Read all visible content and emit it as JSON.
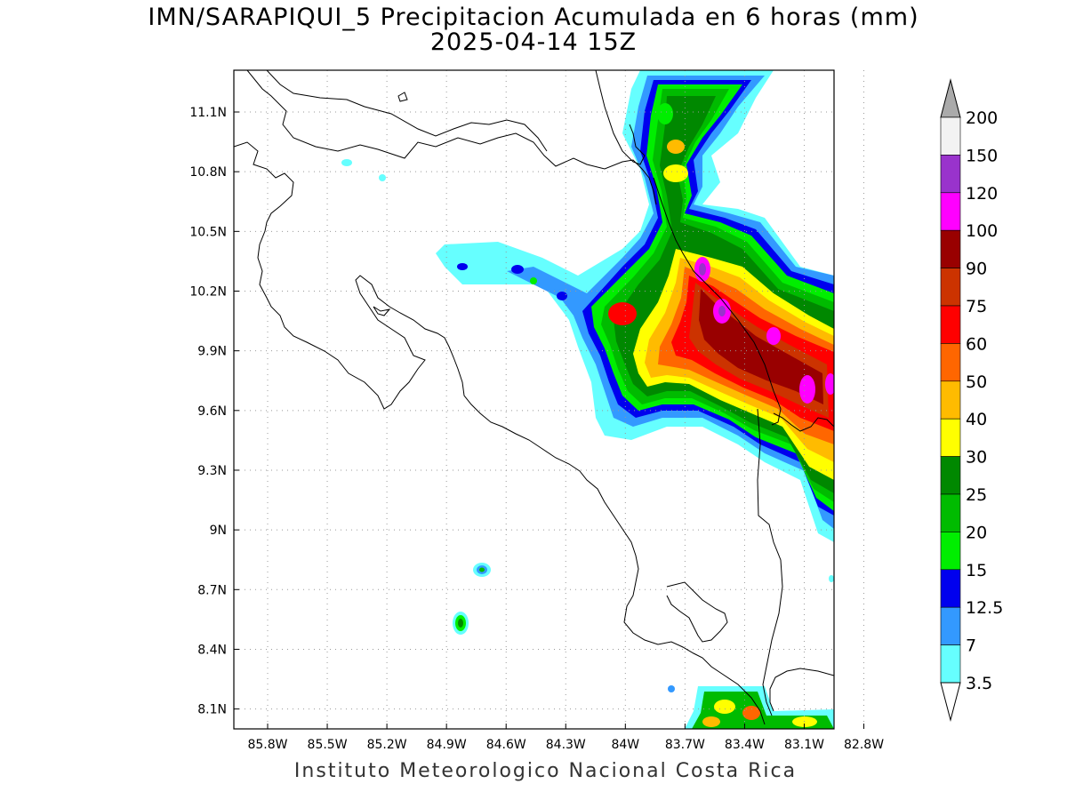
{
  "header": {
    "title": "IMN/SARAPIQUI_5 Precipitacion Acumulada en 6 horas (mm)",
    "subtitle": "2025-04-14 15Z"
  },
  "footer": {
    "credit": "Instituto Meteorologico Nacional Costa Rica"
  },
  "axes": {
    "lon_ticks": [
      "85.8W",
      "85.5W",
      "85.2W",
      "84.9W",
      "84.6W",
      "84.3W",
      "84W",
      "83.7W",
      "83.4W",
      "83.1W",
      "82.8W"
    ],
    "lat_ticks": [
      "11.1N",
      "10.8N",
      "10.5N",
      "10.2N",
      "9.9N",
      "9.6N",
      "9.3N",
      "9N",
      "8.7N",
      "8.4N",
      "8.1N"
    ],
    "lon_values": [
      -85.8,
      -85.5,
      -85.2,
      -84.9,
      -84.6,
      -84.3,
      -84.0,
      -83.7,
      -83.4,
      -83.1,
      -82.8
    ],
    "lat_values": [
      11.1,
      10.8,
      10.5,
      10.2,
      9.9,
      9.6,
      9.3,
      9.0,
      8.7,
      8.4,
      8.1
    ],
    "lon_range": [
      -85.97,
      -82.95
    ],
    "lat_range": [
      8.0,
      11.31
    ],
    "grid": "dotted"
  },
  "colorbar": {
    "levels": [
      "200",
      "150",
      "120",
      "100",
      "90",
      "75",
      "60",
      "50",
      "40",
      "30",
      "25",
      "20",
      "15",
      "12.5",
      "7",
      "3.5"
    ],
    "colors": [
      "#aaaaaa",
      "#f2f2f2",
      "#9933cc",
      "#ff00ff",
      "#990000",
      "#cc3300",
      "#ff0000",
      "#ff6600",
      "#ffbb00",
      "#ffff00",
      "#008800",
      "#00bb00",
      "#00ee00",
      "#0000ee",
      "#3399ff",
      "#66ffff",
      "#ffffff"
    ]
  }
}
